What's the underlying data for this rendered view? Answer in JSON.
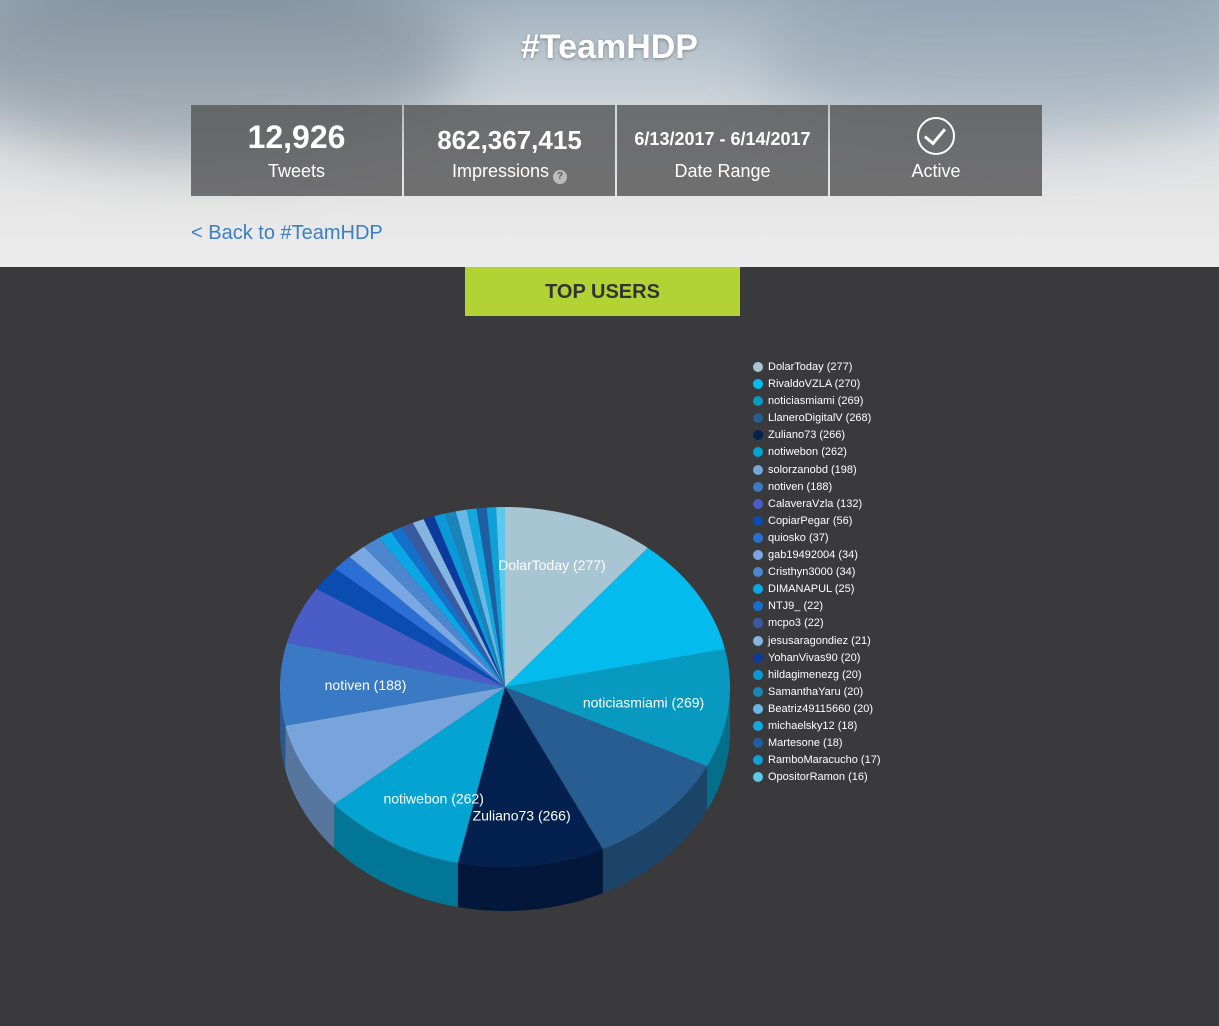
{
  "header": {
    "title": "#TeamHDP",
    "back_link": "< Back to #TeamHDP"
  },
  "stats": {
    "tweets_value": "12,926",
    "tweets_label": "Tweets",
    "impressions_value": "862,367,415",
    "impressions_label": "Impressions",
    "help_glyph": "?",
    "date_value": "6/13/2017 - 6/14/2017",
    "date_label": "Date Range",
    "status_label": "Active",
    "status_icon": "checkmark-circle-icon"
  },
  "tab": {
    "label": "TOP USERS"
  },
  "chart_data": {
    "type": "pie",
    "title": "",
    "legend_position": "right",
    "slices": [
      {
        "name": "DolarToday",
        "value": 277,
        "legend": "DolarToday (277)",
        "color": "#a7c5d3"
      },
      {
        "name": "RivaldoVZLA",
        "value": 270,
        "legend": "RivaldoVZLA (270)",
        "color": "#04bbee"
      },
      {
        "name": "noticiasmiami",
        "value": 269,
        "legend": "noticiasmiami (269)",
        "color": "#0799c0"
      },
      {
        "name": "LlaneroDigitalV",
        "value": 268,
        "legend": "LlaneroDigitalV (268)",
        "color": "#275d90"
      },
      {
        "name": "Zuliano73",
        "value": 266,
        "legend": "Zuliano73 (266)",
        "color": "#03204f"
      },
      {
        "name": "notiwebon",
        "value": 262,
        "legend": "notiwebon (262)",
        "color": "#03a4d1"
      },
      {
        "name": "solorzanobd",
        "value": 198,
        "legend": "solorzanobd (198)",
        "color": "#78a4dc"
      },
      {
        "name": "notiven",
        "value": 188,
        "legend": "notiven (188)",
        "color": "#3a79c4"
      },
      {
        "name": "CalaveraVzla",
        "value": 132,
        "legend": "CalaveraVzla (132)",
        "color": "#4a5cc8"
      },
      {
        "name": "CopiarPegar",
        "value": 56,
        "legend": "CopiarPegar (56)",
        "color": "#0a4cb0"
      },
      {
        "name": "quiosko",
        "value": 37,
        "legend": "quiosko (37)",
        "color": "#2b6fd6"
      },
      {
        "name": "gab19492004",
        "value": 34,
        "legend": "gab19492004 (34)",
        "color": "#7aa8e2"
      },
      {
        "name": "Cristhyn3000",
        "value": 34,
        "legend": "Cristhyn3000 (34)",
        "color": "#4b86cf"
      },
      {
        "name": "DIMANAPUL",
        "value": 25,
        "legend": "DIMANAPUL (25)",
        "color": "#0aa6e6"
      },
      {
        "name": "NTJ9_",
        "value": 22,
        "legend": "NTJ9_ (22)",
        "color": "#1470c8"
      },
      {
        "name": "mcpo3",
        "value": 22,
        "legend": "mcpo3 (22)",
        "color": "#3a5aa0"
      },
      {
        "name": "jesusaragondiez",
        "value": 21,
        "legend": "jesusaragondiez (21)",
        "color": "#86b4e0"
      },
      {
        "name": "YohanVivas90",
        "value": 20,
        "legend": "YohanVivas90 (20)",
        "color": "#0c3a9c"
      },
      {
        "name": "hildagimenezg",
        "value": 20,
        "legend": "hildagimenezg (20)",
        "color": "#0a98d8"
      },
      {
        "name": "SamanthaYaru",
        "value": 20,
        "legend": "SamanthaYaru (20)",
        "color": "#1a84b8"
      },
      {
        "name": "Beatriz49115660",
        "value": 20,
        "legend": "Beatriz49115660 (20)",
        "color": "#66b8e6"
      },
      {
        "name": "michaelsky12",
        "value": 18,
        "legend": "michaelsky12 (18)",
        "color": "#13a7e0"
      },
      {
        "name": "Martesone",
        "value": 18,
        "legend": "Martesone (18)",
        "color": "#1d5fa0"
      },
      {
        "name": "RamboMaracucho",
        "value": 17,
        "legend": "RamboMaracucho (17)",
        "color": "#0fa0d8"
      },
      {
        "name": "OpositorRamon",
        "value": 16,
        "legend": "OpositorRamon (16)",
        "color": "#5dc8ec"
      }
    ],
    "slice_labels_shown": [
      "DolarToday",
      "noticiasmiami",
      "Zuliano73",
      "notiwebon",
      "notiven"
    ]
  }
}
